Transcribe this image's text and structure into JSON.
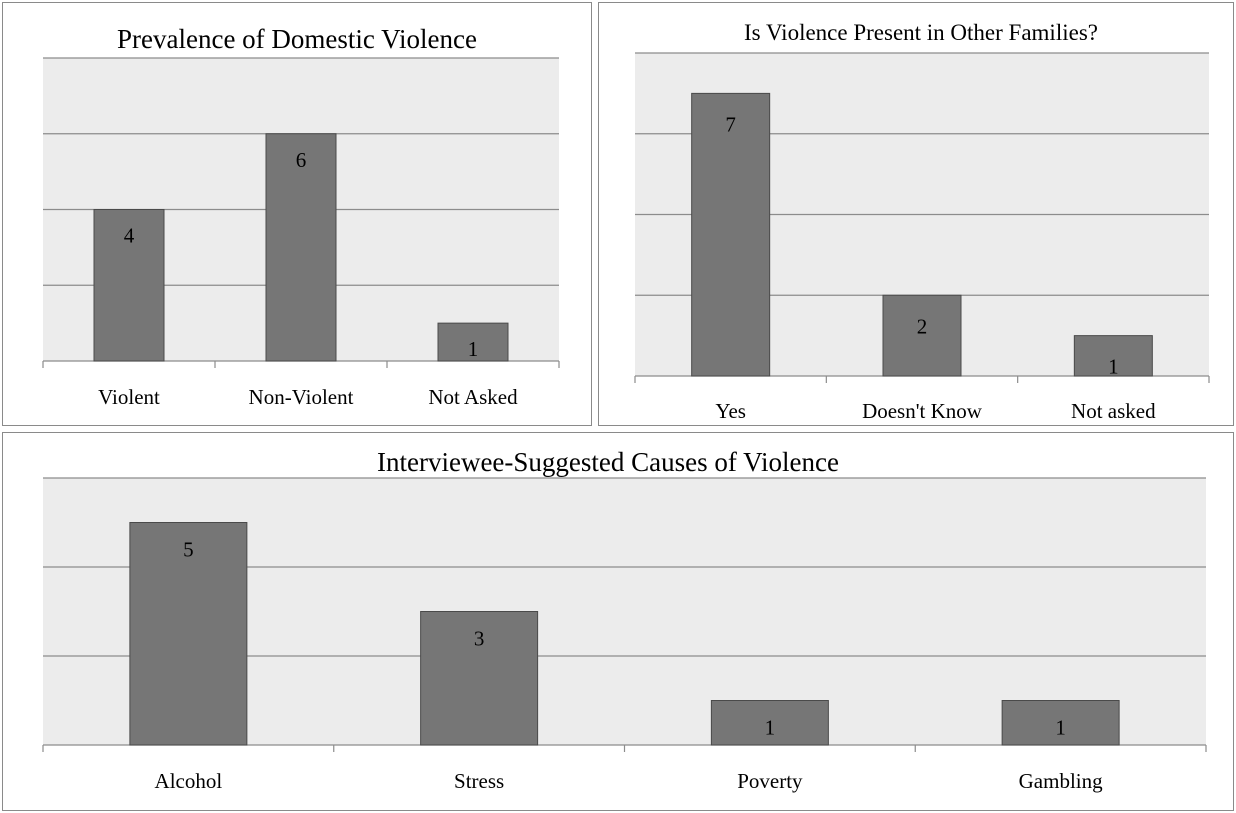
{
  "chart_data": [
    {
      "type": "bar",
      "title": "Prevalence of Domestic Violence",
      "categories": [
        "Violent",
        "Non-Violent",
        "Not Asked"
      ],
      "values": [
        4,
        6,
        1
      ],
      "data_labels": [
        "4",
        "6",
        "1"
      ],
      "ylim": [
        0,
        8
      ],
      "ytick_step": 2,
      "grid": true,
      "legend": "none"
    },
    {
      "type": "bar",
      "title": "Is Violence Present in Other Families?",
      "categories": [
        "Yes",
        "Doesn't Know",
        "Not asked"
      ],
      "values": [
        7,
        2,
        1
      ],
      "data_labels": [
        "7",
        "2",
        "1"
      ],
      "ylim": [
        0,
        8
      ],
      "ytick_step": 2,
      "grid": true,
      "legend": "none"
    },
    {
      "type": "bar",
      "title": "Interviewee-Suggested Causes of Violence",
      "categories": [
        "Alcohol",
        "Stress",
        "Poverty",
        "Gambling"
      ],
      "values": [
        5,
        3,
        1,
        1
      ],
      "data_labels": [
        "5",
        "3",
        "1",
        "1"
      ],
      "ylim": [
        0,
        6
      ],
      "ytick_step": 2,
      "grid": true,
      "legend": "none"
    }
  ]
}
